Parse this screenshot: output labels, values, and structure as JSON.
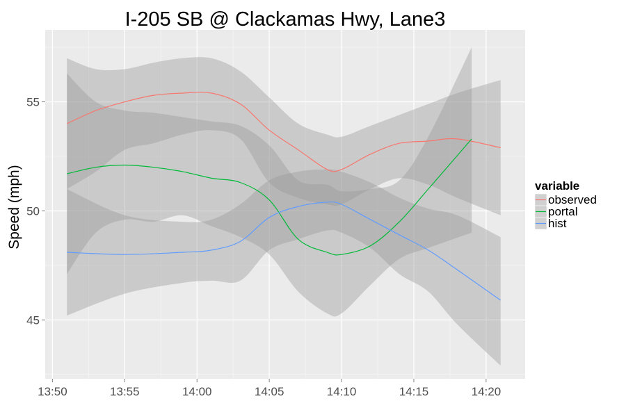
{
  "chart_data": {
    "type": "line",
    "title": "I-205 SB @ Clackamas Hwy, Lane3",
    "xlabel": "",
    "ylabel": "Speed (mph)",
    "x_tick_labels": [
      "13:50",
      "13:55",
      "14:00",
      "14:05",
      "14:10",
      "14:15",
      "14:20"
    ],
    "x_ticks": [
      "13:50",
      "13:55",
      "14:00",
      "14:05",
      "14:10",
      "14:15",
      "14:20"
    ],
    "xlim": [
      "13:49.5",
      "14:22.7"
    ],
    "y_ticks": [
      45,
      50,
      55
    ],
    "ylim": [
      42.3,
      58.3
    ],
    "grid": true,
    "legend": {
      "title": "variable",
      "placement": "right"
    },
    "colors": {
      "panel_bg": "#ebebeb",
      "grid": "#ffffff",
      "ribbon": "#999999"
    },
    "series": [
      {
        "name": "observed",
        "color": "#f8766d",
        "x": [
          "13:51",
          "13:53",
          "13:55",
          "13:57",
          "13:59",
          "14:01",
          "14:03",
          "14:05",
          "14:07",
          "14:09",
          "14:10",
          "14:12",
          "14:14",
          "14:16",
          "14:18",
          "14:21"
        ],
        "values": [
          54.0,
          54.6,
          55.0,
          55.3,
          55.4,
          55.4,
          54.9,
          53.7,
          52.8,
          51.9,
          51.9,
          52.6,
          53.1,
          53.2,
          53.3,
          52.9
        ],
        "lower": [
          51.0,
          51.8,
          52.8,
          53.1,
          53.5,
          53.7,
          53.3,
          51.3,
          50.6,
          50.3,
          50.3,
          51.0,
          51.5,
          51.2,
          50.6,
          49.8
        ],
        "upper": [
          57.0,
          56.5,
          56.5,
          56.8,
          57.0,
          57.0,
          56.4,
          55.2,
          54.0,
          53.5,
          53.4,
          53.9,
          54.4,
          54.9,
          55.4,
          56.0
        ]
      },
      {
        "name": "portal",
        "color": "#00ba38",
        "x": [
          "13:51",
          "13:53",
          "13:55",
          "13:57",
          "13:59",
          "14:01",
          "14:03",
          "14:05",
          "14:07",
          "14:09",
          "14:10",
          "14:12",
          "14:14",
          "14:16",
          "14:19"
        ],
        "values": [
          51.7,
          52.0,
          52.1,
          52.0,
          51.8,
          51.5,
          51.3,
          50.5,
          48.7,
          48.1,
          48.0,
          48.4,
          49.5,
          51.0,
          53.3
        ],
        "lower": [
          47.1,
          49.0,
          49.6,
          49.5,
          49.8,
          49.3,
          48.8,
          48.0,
          46.3,
          45.3,
          45.3,
          46.6,
          47.8,
          48.3,
          49.0
        ],
        "upper": [
          56.3,
          55.0,
          54.6,
          54.5,
          54.3,
          54.1,
          53.9,
          53.0,
          51.4,
          51.2,
          50.9,
          51.0,
          51.4,
          53.4,
          57.5
        ]
      },
      {
        "name": "hist",
        "color": "#619cff",
        "x": [
          "13:51",
          "13:55",
          "13:59",
          "14:01",
          "14:03",
          "14:05",
          "14:07",
          "14:09",
          "14:10",
          "14:12",
          "14:14",
          "14:16",
          "14:18",
          "14:21"
        ],
        "values": [
          48.1,
          48.0,
          48.1,
          48.2,
          48.6,
          49.7,
          50.2,
          50.4,
          50.3,
          49.6,
          48.9,
          48.2,
          47.3,
          45.9
        ],
        "lower": [
          45.2,
          46.2,
          46.7,
          46.8,
          46.8,
          48.2,
          48.7,
          49.1,
          49.0,
          48.3,
          47.1,
          46.3,
          44.8,
          42.9
        ],
        "upper": [
          51.0,
          49.8,
          49.5,
          49.6,
          50.3,
          51.4,
          51.8,
          51.9,
          51.8,
          51.3,
          50.6,
          50.1,
          49.8,
          48.8
        ]
      }
    ]
  }
}
